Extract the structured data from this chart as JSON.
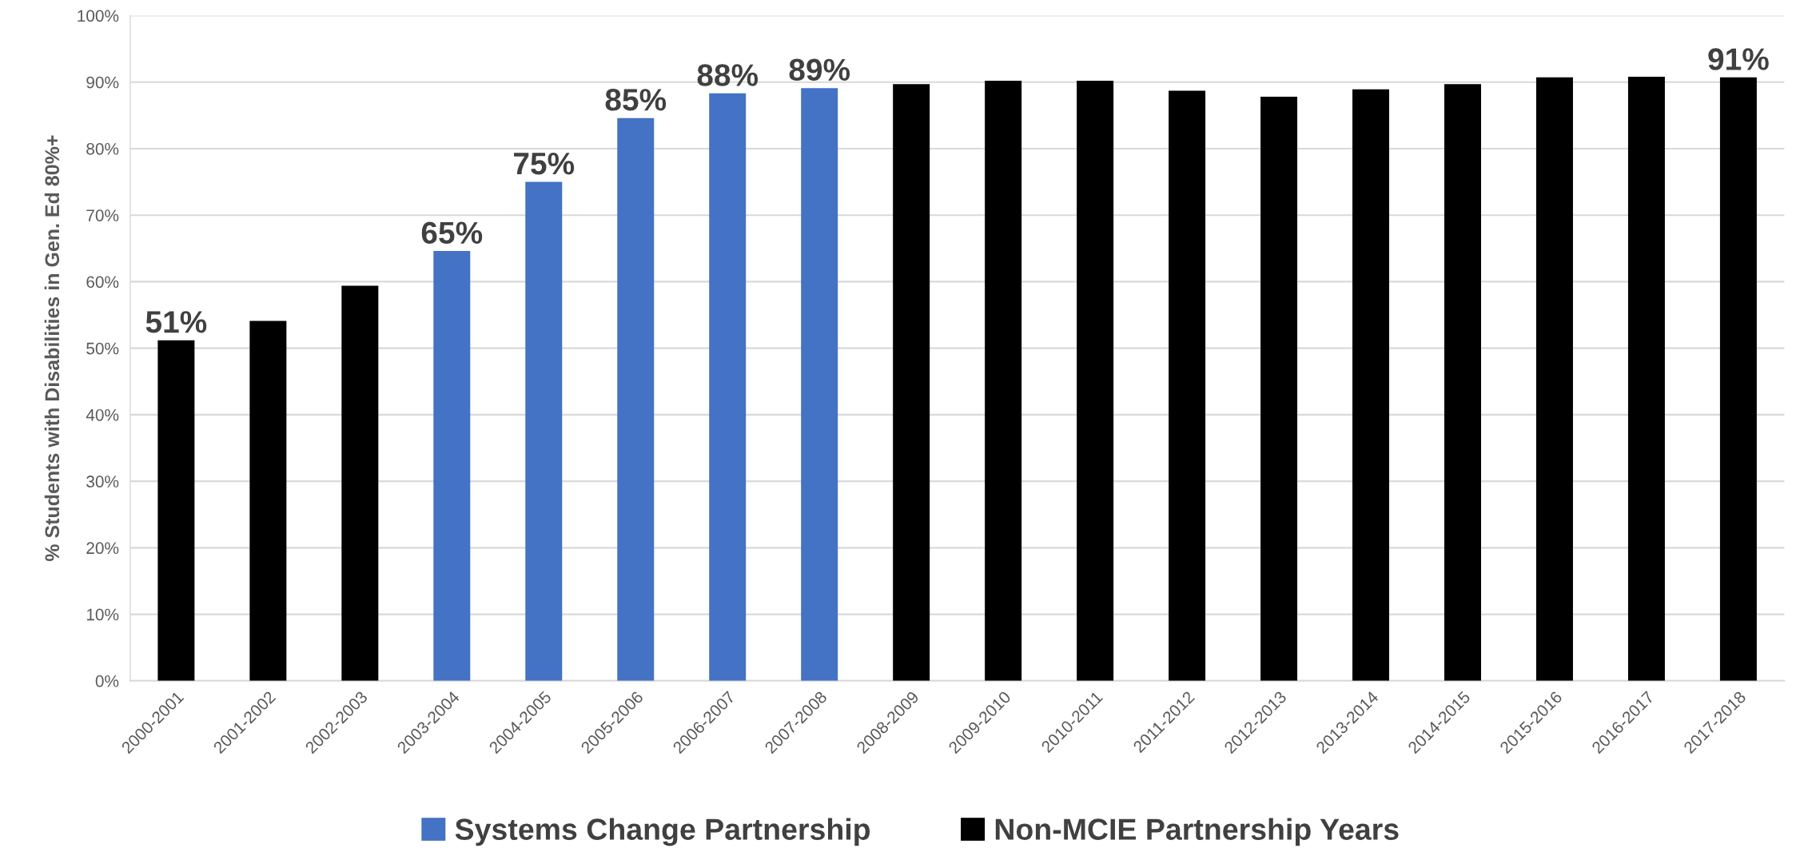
{
  "chart_data": {
    "type": "bar",
    "ylabel": "% Students with Disabilities in Gen. Ed 80%+",
    "categories": [
      "2000-2001",
      "2001-2002",
      "2002-2003",
      "2003-2004",
      "2004-2005",
      "2005-2006",
      "2006-2007",
      "2007-2008",
      "2008-2009",
      "2009-2010",
      "2010-2011",
      "2011-2012",
      "2012-2013",
      "2013-2014",
      "2014-2015",
      "2015-2016",
      "2016-2017",
      "2017-2018"
    ],
    "series": [
      {
        "name": "Systems Change Partnership",
        "color": "#4472c4",
        "values": [
          null,
          null,
          null,
          64.6,
          75.0,
          84.6,
          88.3,
          89.1,
          null,
          null,
          null,
          null,
          null,
          null,
          null,
          null,
          null,
          null
        ],
        "value_labels": [
          null,
          null,
          null,
          "65%",
          "75%",
          "85%",
          "88%",
          "89%",
          null,
          null,
          null,
          null,
          null,
          null,
          null,
          null,
          null,
          null
        ]
      },
      {
        "name": "Non-MCIE Partnership Years",
        "color": "#000000",
        "values": [
          51.2,
          54.1,
          59.4,
          null,
          null,
          null,
          null,
          null,
          89.7,
          90.2,
          90.2,
          88.7,
          87.8,
          88.9,
          89.7,
          90.7,
          90.8,
          90.7
        ],
        "value_labels": [
          "51%",
          null,
          null,
          null,
          null,
          null,
          null,
          null,
          null,
          null,
          null,
          null,
          null,
          null,
          null,
          null,
          null,
          "91%"
        ]
      }
    ],
    "ylim": [
      0,
      100
    ],
    "yticks": [
      {
        "value": 0,
        "label": "0%"
      },
      {
        "value": 10,
        "label": "10%"
      },
      {
        "value": 20,
        "label": "20%"
      },
      {
        "value": 30,
        "label": "30%"
      },
      {
        "value": 40,
        "label": "40%"
      },
      {
        "value": 50,
        "label": "50%"
      },
      {
        "value": 60,
        "label": "60%"
      },
      {
        "value": 70,
        "label": "70%"
      },
      {
        "value": 80,
        "label": "80%"
      },
      {
        "value": 90,
        "label": "90%"
      },
      {
        "value": 100,
        "label": "100%"
      }
    ],
    "grid": "y",
    "legend": "bottom"
  }
}
